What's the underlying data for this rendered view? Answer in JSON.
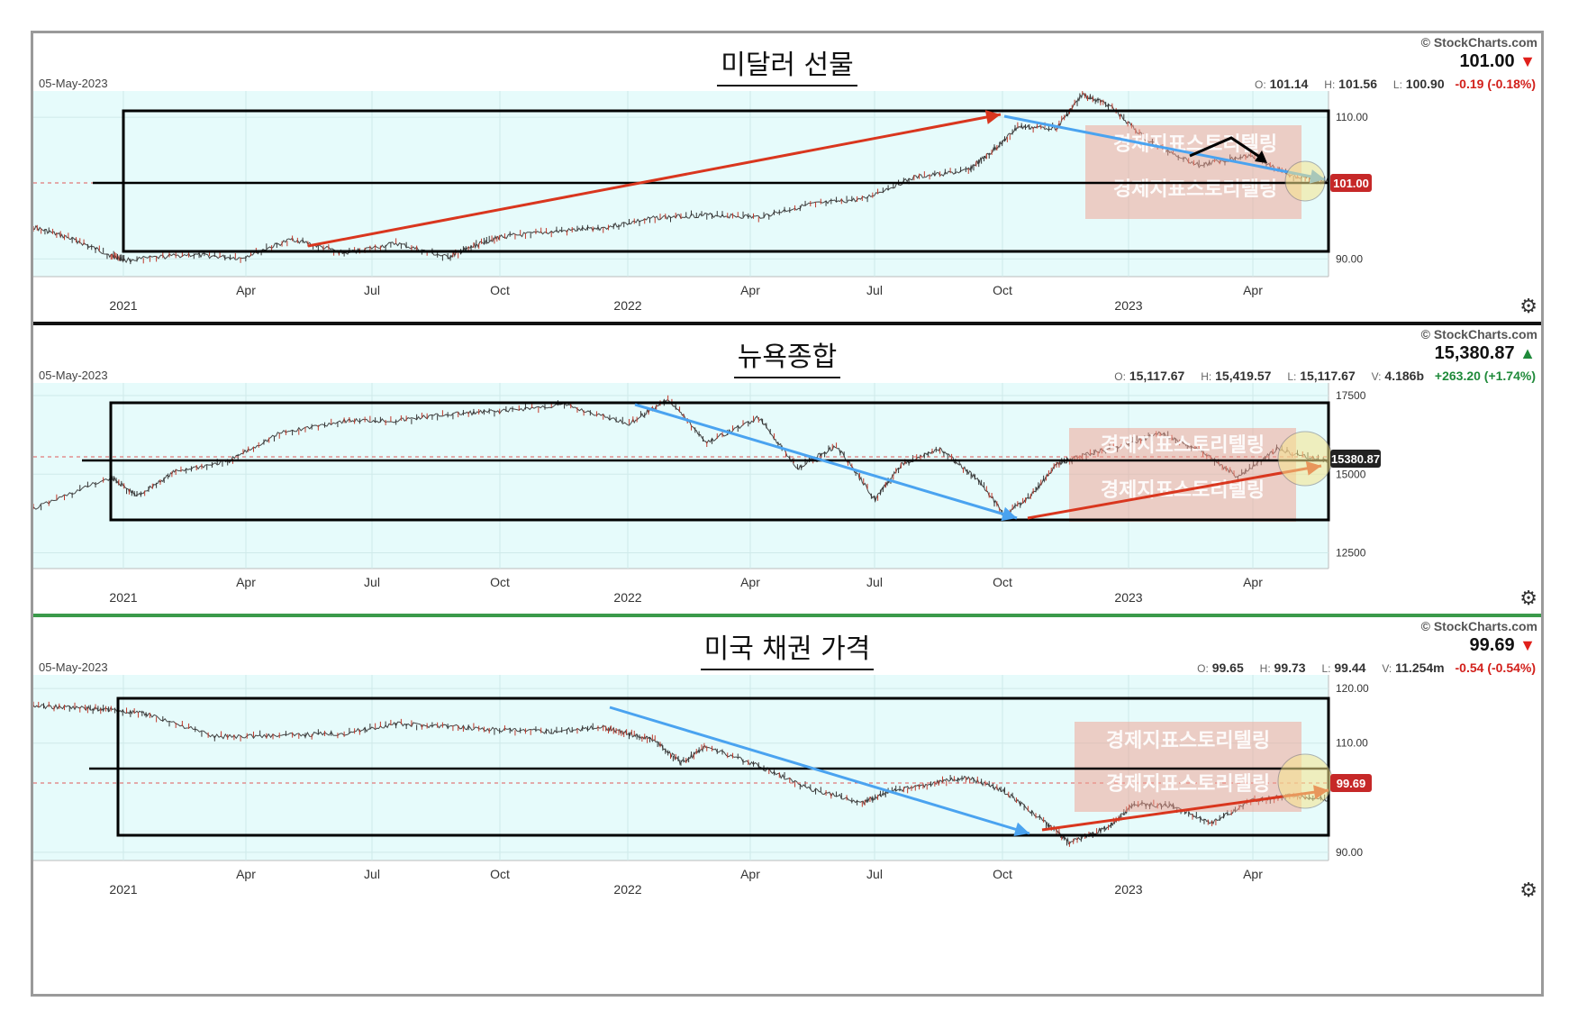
{
  "panels": [
    {
      "title": "미달러 선물",
      "date": "05-May-2023",
      "copyright": "© StockCharts.com",
      "last": "101.00",
      "direction": "down",
      "ohlc": {
        "o": "101.14",
        "h": "101.56",
        "l": "100.90",
        "v": null,
        "chg": "-0.19 (-0.18%)"
      },
      "price_tag": "101.00",
      "watermark": "경제지표스토리텔링"
    },
    {
      "title": "뉴욕종합",
      "date": "05-May-2023",
      "copyright": "© StockCharts.com",
      "last": "15,380.87",
      "direction": "up",
      "ohlc": {
        "o": "15,117.67",
        "h": "15,419.57",
        "l": "15,117.67",
        "v": "4.186b",
        "chg": "+263.20 (+1.74%)"
      },
      "price_tag": "15380.87",
      "watermark": "경제지표스토리텔링"
    },
    {
      "title": "미국 채권 가격",
      "date": "05-May-2023",
      "copyright": "© StockCharts.com",
      "last": "99.69",
      "direction": "down",
      "ohlc": {
        "o": "99.65",
        "h": "99.73",
        "l": "99.44",
        "v": "11.254m",
        "chg": "-0.54 (-0.54%)"
      },
      "price_tag": "99.69",
      "watermark": "경제지표스토리텔링"
    }
  ],
  "chart_data": [
    {
      "type": "line",
      "title": "미달러 선물",
      "x_labels": [
        "2021",
        "Apr",
        "Jul",
        "Oct",
        "2022",
        "Apr",
        "Jul",
        "Oct",
        "2023",
        "Apr"
      ],
      "y_ticks": [
        "110.00",
        "90.00"
      ],
      "y_tick_values": [
        110,
        90
      ],
      "ylim": [
        87.5,
        113.7
      ],
      "x": [
        0.0,
        0.03,
        0.06,
        0.07,
        0.12,
        0.16,
        0.2,
        0.24,
        0.28,
        0.32,
        0.34,
        0.36,
        0.4,
        0.44,
        0.48,
        0.52,
        0.56,
        0.6,
        0.64,
        0.68,
        0.72,
        0.74,
        0.76,
        0.79,
        0.81,
        0.83,
        0.86,
        0.9,
        0.94,
        0.97,
        1.0
      ],
      "values": [
        94.5,
        92.8,
        90.5,
        89.8,
        90.6,
        90.1,
        92.8,
        90.8,
        92.2,
        90.2,
        91.8,
        93.1,
        93.8,
        94.4,
        95.8,
        96.2,
        95.9,
        97.7,
        98.4,
        101.5,
        102.4,
        105.1,
        108.6,
        108.5,
        113.2,
        111.8,
        106.7,
        103.2,
        104.7,
        101.8,
        101.0
      ]
    },
    {
      "type": "line",
      "title": "뉴욕종합",
      "x_labels": [
        "2021",
        "Apr",
        "Jul",
        "Oct",
        "2022",
        "Apr",
        "Jul",
        "Oct",
        "2023",
        "Apr"
      ],
      "y_ticks": [
        "17500",
        "15000",
        "12500"
      ],
      "y_tick_values": [
        17500,
        15000,
        12500
      ],
      "ylim": [
        12000,
        17900
      ],
      "x": [
        0.0,
        0.06,
        0.08,
        0.11,
        0.15,
        0.19,
        0.24,
        0.28,
        0.32,
        0.36,
        0.41,
        0.46,
        0.49,
        0.52,
        0.56,
        0.59,
        0.62,
        0.65,
        0.67,
        0.7,
        0.73,
        0.75,
        0.77,
        0.79,
        0.81,
        0.84,
        0.87,
        0.9,
        0.93,
        0.96,
        1.0
      ],
      "values": [
        13900,
        14900,
        14300,
        15100,
        15400,
        16300,
        16700,
        16700,
        16900,
        17000,
        17200,
        16600,
        17400,
        16000,
        16800,
        15200,
        15900,
        14200,
        15300,
        15800,
        14800,
        13700,
        14300,
        15300,
        15600,
        15900,
        16300,
        15800,
        14900,
        15800,
        15380
      ]
    },
    {
      "type": "line",
      "title": "미국 채권 가격",
      "x_labels": [
        "2021",
        "Apr",
        "Jul",
        "Oct",
        "2022",
        "Apr",
        "Jul",
        "Oct",
        "2023",
        "Apr"
      ],
      "y_ticks": [
        "120.00",
        "110.00",
        "90.00"
      ],
      "y_tick_values": [
        120,
        110,
        90
      ],
      "ylim": [
        88.5,
        122.5
      ],
      "x": [
        0.0,
        0.04,
        0.06,
        0.09,
        0.14,
        0.19,
        0.24,
        0.28,
        0.32,
        0.36,
        0.4,
        0.44,
        0.46,
        0.48,
        0.5,
        0.52,
        0.56,
        0.6,
        0.64,
        0.66,
        0.69,
        0.72,
        0.75,
        0.78,
        0.8,
        0.83,
        0.85,
        0.88,
        0.91,
        0.94,
        0.97,
        1.0
      ],
      "values": [
        116.8,
        116.4,
        116.1,
        115.2,
        111.2,
        111.4,
        111.8,
        113.5,
        113.1,
        112.4,
        112.1,
        113.0,
        111.7,
        110.6,
        106.4,
        109.4,
        105.8,
        101.6,
        99.1,
        101.0,
        102.4,
        103.8,
        101.1,
        95.7,
        91.8,
        94.6,
        98.8,
        98.5,
        95.4,
        99.4,
        100.4,
        99.69
      ]
    }
  ]
}
